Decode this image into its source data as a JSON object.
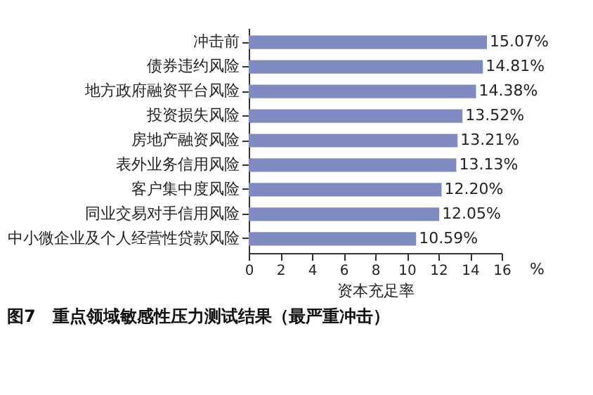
{
  "chart_data": {
    "type": "bar",
    "orientation": "horizontal",
    "title": "图7　重点领域敏感性压力测试结果（最严重冲击）",
    "xlabel": "资本充足率",
    "categories": [
      "冲击前",
      "债券违约风险",
      "地方政府融资平台风险",
      "投资损失风险",
      "房地产融资风险",
      "表外业务信用风险",
      "客户集中度风险",
      "同业交易对手信用风险",
      "中小微企业及个人经营性贷款风险"
    ],
    "values": [
      15.07,
      14.81,
      14.38,
      13.52,
      13.21,
      13.13,
      12.2,
      12.05,
      10.59
    ],
    "value_labels": [
      "15.07%",
      "14.81%",
      "14.38%",
      "13.52%",
      "13.21%",
      "13.13%",
      "12.20%",
      "12.05%",
      "10.59%"
    ],
    "color": "#7f8bc0",
    "xlim": [
      0,
      16
    ],
    "xticks": [
      0,
      2,
      4,
      6,
      8,
      10,
      12,
      14,
      16
    ],
    "grid": false,
    "annotations": [
      "%"
    ]
  }
}
